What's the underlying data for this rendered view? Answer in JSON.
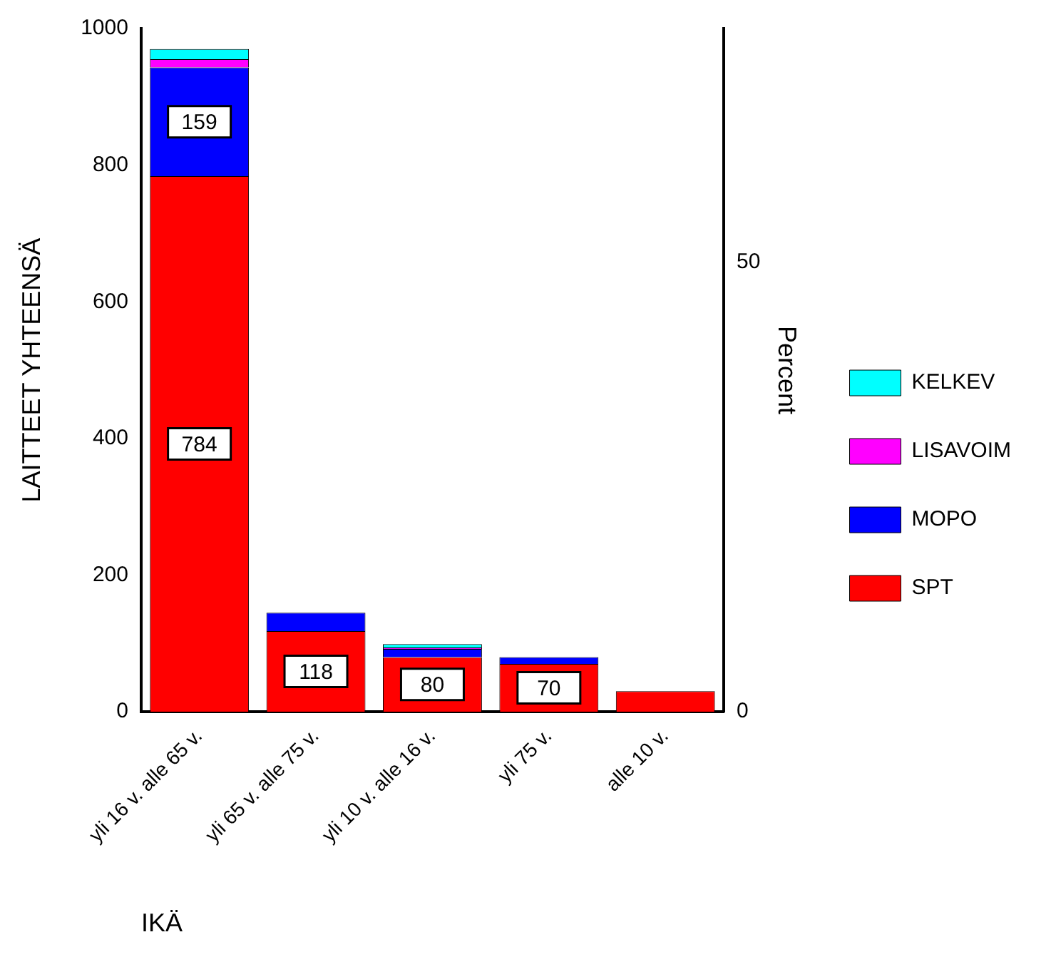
{
  "chart_data": {
    "type": "bar",
    "stacked": true,
    "xlabel": "IKÄ",
    "ylabel": "LAITTEET YHTEENSÄ",
    "y2label": "Percent",
    "categories": [
      "yli 16 v. alle 65 v.",
      "yli 65 v. alle 75 v.",
      "yli 10 v. alle 16 v.",
      "yli 75 v.",
      "alle 10 v."
    ],
    "series": [
      {
        "name": "SPT",
        "color": "#ff0000",
        "values": [
          784,
          118,
          80,
          70,
          30
        ],
        "value_labels": [
          "784",
          "118",
          "80",
          "70",
          null
        ]
      },
      {
        "name": "MOPO",
        "color": "#0000ff",
        "values": [
          159,
          27,
          12,
          10,
          0
        ],
        "value_labels": [
          "159",
          null,
          null,
          null,
          null
        ]
      },
      {
        "name": "LISAVOIM",
        "color": "#ff00ff",
        "values": [
          12,
          0,
          2,
          0,
          0
        ]
      },
      {
        "name": "KELKEV",
        "color": "#00ffff",
        "values": [
          15,
          0,
          5,
          0,
          0
        ]
      }
    ],
    "ylim": [
      0,
      1000
    ],
    "yticks": [
      0,
      200,
      400,
      600,
      800,
      1000
    ],
    "y2lim": [
      0,
      76
    ],
    "y2ticks": [
      0,
      50
    ],
    "grid": false,
    "legend": "right"
  }
}
